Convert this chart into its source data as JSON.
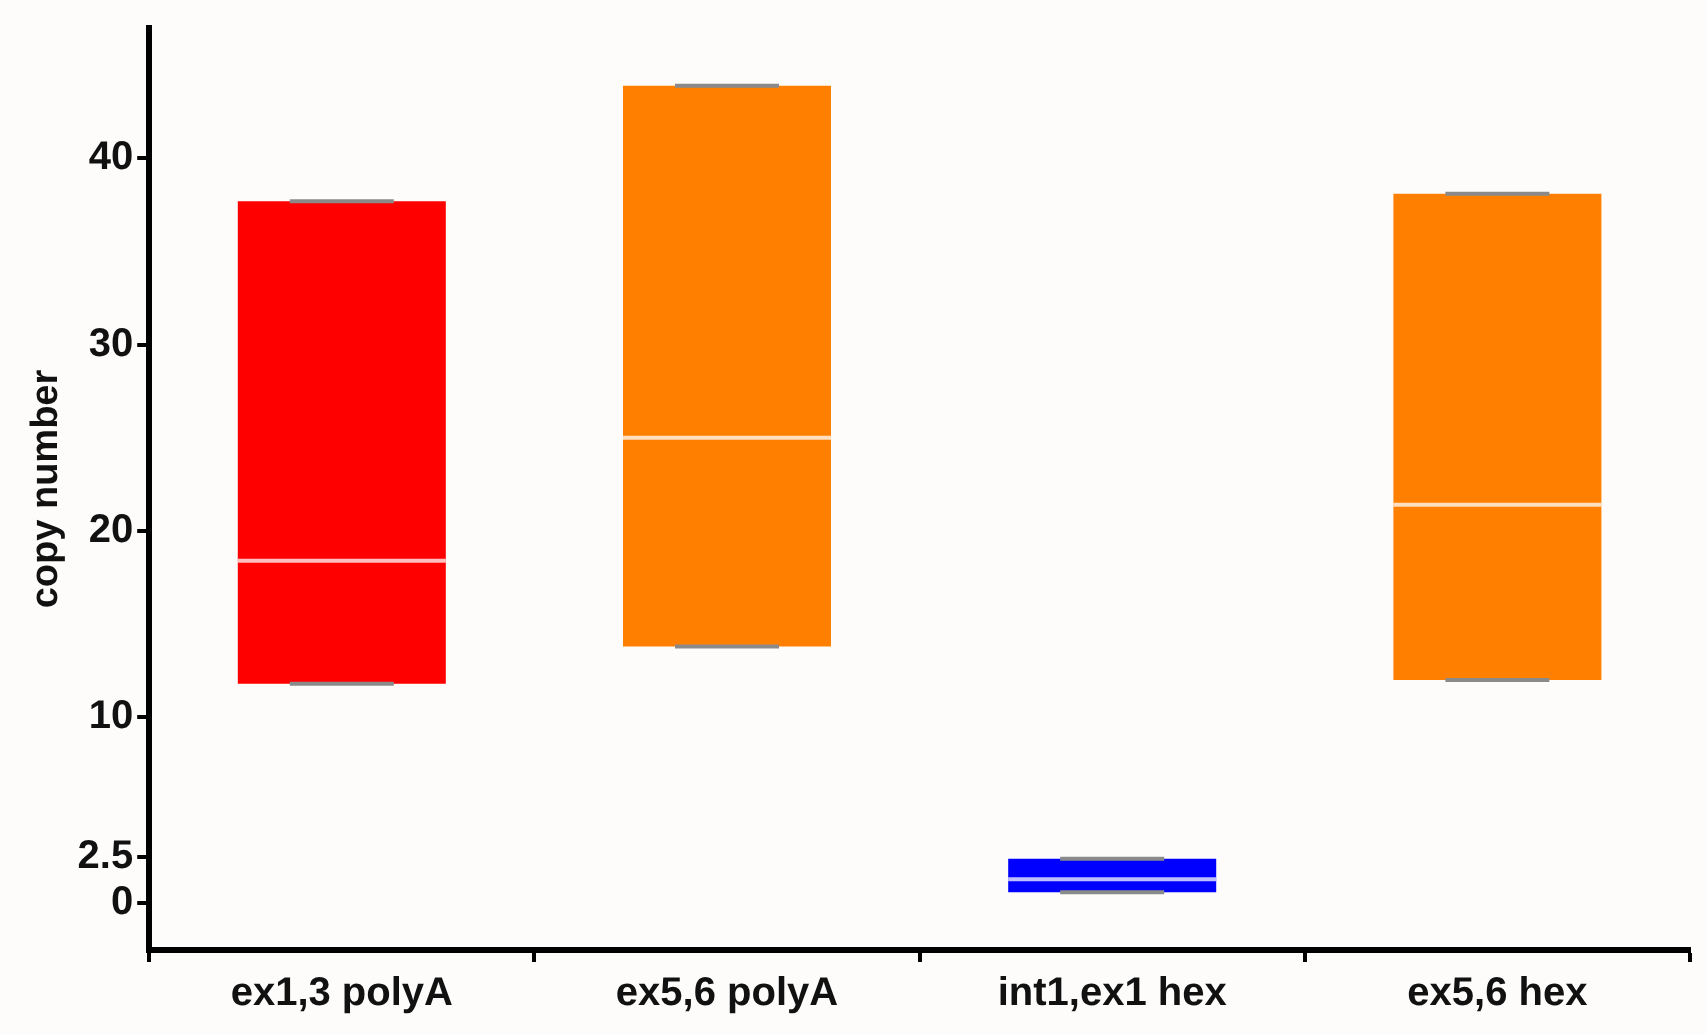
{
  "chart_data": {
    "type": "box",
    "ylabel": "copy number",
    "categories": [
      "ex1,3 polyA",
      "ex5,6 polyA",
      "int1,ex1 hex",
      "ex5,6 hex"
    ],
    "boxes": [
      {
        "low": 11.8,
        "q1": 11.8,
        "median": 18.4,
        "q3": 37.7,
        "high": 37.7
      },
      {
        "low": 13.8,
        "q1": 13.8,
        "median": 25.0,
        "q3": 43.9,
        "high": 43.9
      },
      {
        "low": 0.6,
        "q1": 0.6,
        "median": 1.3,
        "q3": 2.4,
        "high": 2.4
      },
      {
        "low": 12.0,
        "q1": 12.0,
        "median": 21.4,
        "q3": 38.1,
        "high": 38.1
      }
    ],
    "colors": [
      "#ff0000",
      "#ff8000",
      "#0000ff",
      "#ff8000"
    ],
    "ylim": [
      -2.5,
      47
    ],
    "yticks": [
      0,
      2.5,
      10,
      20,
      30,
      40
    ],
    "grid": false,
    "legend": false
  }
}
